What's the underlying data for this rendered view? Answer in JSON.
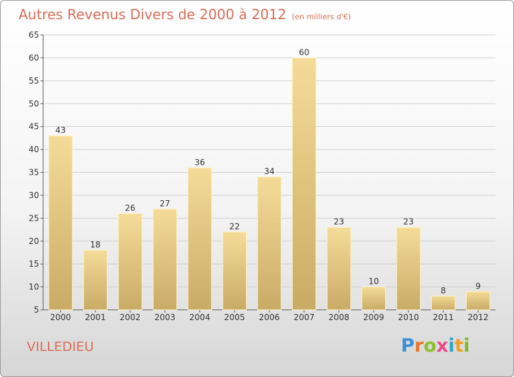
{
  "title": {
    "main": "Autres Revenus Divers de 2000 à 2012",
    "unit": "(en milliers d'€)"
  },
  "town": "VILLEDIEU",
  "logo": {
    "text": "Proxiti",
    "letters": [
      {
        "ch": "P",
        "color": "#3a8fd6"
      },
      {
        "ch": "r",
        "color": "#e8762c"
      },
      {
        "ch": "o",
        "color": "#8dbf2e"
      },
      {
        "ch": "x",
        "color": "#e84a8a"
      },
      {
        "ch": "i",
        "color": "#2aa6c9"
      },
      {
        "ch": "t",
        "color": "#f0a020"
      },
      {
        "ch": "i",
        "color": "#7ab82a"
      }
    ]
  },
  "colors": {
    "title": "#d96d57",
    "bar_light": "#f4dc98",
    "bar_dark": "#cdb06a",
    "grid": "#cfcfcf",
    "axis_text": "#333333"
  },
  "chart_data": {
    "type": "bar",
    "categories": [
      "2000",
      "2001",
      "2002",
      "2003",
      "2004",
      "2005",
      "2006",
      "2007",
      "2008",
      "2009",
      "2010",
      "2011",
      "2012"
    ],
    "values": [
      43,
      18,
      26,
      27,
      36,
      22,
      34,
      60,
      23,
      10,
      23,
      8,
      9
    ],
    "yticks": [
      5,
      10,
      15,
      20,
      25,
      30,
      35,
      40,
      45,
      50,
      55,
      60,
      65
    ],
    "ylim": [
      5,
      65
    ],
    "grid": true,
    "legend": "none"
  }
}
